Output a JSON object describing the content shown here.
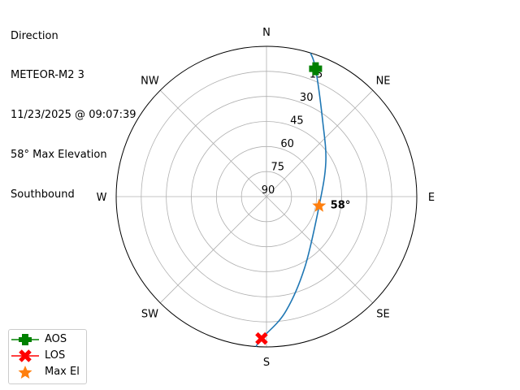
{
  "title_lines": [
    "Direction",
    "METEOR-M2 3",
    "11/23/2025 @ 09:07:39",
    "58° Max Elevation",
    "Southbound"
  ],
  "chart_data": {
    "type": "polar-line",
    "theta_direction": "clockwise",
    "theta_zero": "N",
    "direction_labels": [
      {
        "label": "N",
        "az": 0
      },
      {
        "label": "NE",
        "az": 45
      },
      {
        "label": "E",
        "az": 90
      },
      {
        "label": "SE",
        "az": 135
      },
      {
        "label": "S",
        "az": 180
      },
      {
        "label": "SW",
        "az": 225
      },
      {
        "label": "W",
        "az": 270
      },
      {
        "label": "NW",
        "az": 315
      }
    ],
    "radial_axis": {
      "label_values": [
        90,
        75,
        60,
        45,
        30,
        15
      ],
      "range": [
        90,
        0
      ],
      "unit": "elevation degrees",
      "grid": true
    },
    "series": [
      {
        "type": "line",
        "color": "#1f77b4",
        "points": [
          {
            "az": 17,
            "el": 0
          },
          {
            "az": 21,
            "el": 8
          },
          {
            "az": 37,
            "el": 34
          },
          {
            "az": 60,
            "el": 49
          },
          {
            "az": 100,
            "el": 58
          },
          {
            "az": 152,
            "el": 41.5
          },
          {
            "az": 171,
            "el": 19.6
          },
          {
            "az": 182,
            "el": 5
          },
          {
            "az": 184,
            "el": 0
          }
        ]
      },
      {
        "name": "AOS",
        "marker": "plus",
        "color": "#008000",
        "az": 21,
        "el": 8
      },
      {
        "name": "LOS",
        "marker": "x",
        "color": "#ff0000",
        "az": 182,
        "el": 5
      },
      {
        "name": "Max El",
        "marker": "star",
        "color": "#ff7f0e",
        "az": 100,
        "el": 58,
        "annotation": "58°"
      }
    ],
    "legend_position": "lower-left"
  }
}
